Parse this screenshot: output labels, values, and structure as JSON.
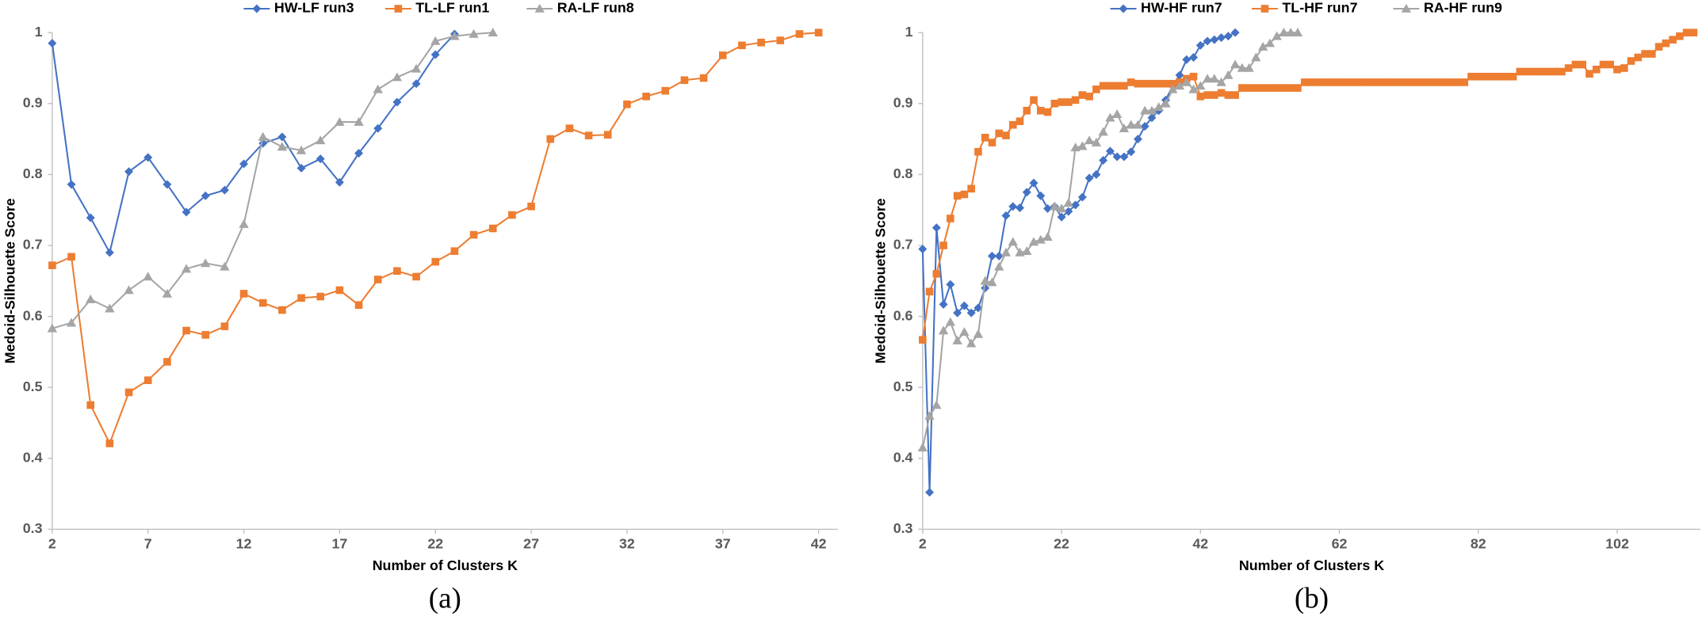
{
  "chart_data": [
    {
      "type": "line",
      "caption": "(a)",
      "xlabel": "Number of Clusters K",
      "ylabel": "Medoid-Silhouette Score",
      "xlim": [
        2,
        43
      ],
      "xticks": [
        2,
        7,
        12,
        17,
        22,
        27,
        32,
        37,
        42
      ],
      "ylim": [
        0.3,
        1
      ],
      "yticks": [
        0.3,
        0.4,
        0.5,
        0.6,
        0.7,
        0.8,
        0.9,
        1
      ],
      "series": [
        {
          "name": "HW-LF run3",
          "color": "#4472c4",
          "marker": "diamond",
          "x": [
            2,
            3,
            4,
            5,
            6,
            7,
            8,
            9,
            10,
            11,
            12,
            13,
            14,
            15,
            16,
            17,
            18,
            19,
            20,
            21,
            22,
            23
          ],
          "values": [
            0.985,
            0.786,
            0.739,
            0.69,
            0.804,
            0.824,
            0.786,
            0.747,
            0.77,
            0.778,
            0.815,
            0.844,
            0.853,
            0.809,
            0.822,
            0.789,
            0.83,
            0.865,
            0.902,
            0.928,
            0.969,
            0.998
          ]
        },
        {
          "name": "TL-LF run1",
          "color": "#ed7d31",
          "marker": "square",
          "x": [
            2,
            3,
            4,
            5,
            6,
            7,
            8,
            9,
            10,
            11,
            12,
            13,
            14,
            15,
            16,
            17,
            18,
            19,
            20,
            21,
            22,
            23,
            24,
            25,
            26,
            27,
            28,
            29,
            30,
            31,
            32,
            33,
            34,
            35,
            36,
            37,
            38,
            39,
            40,
            41,
            42
          ],
          "values": [
            0.672,
            0.684,
            0.475,
            0.421,
            0.493,
            0.51,
            0.536,
            0.58,
            0.574,
            0.586,
            0.632,
            0.619,
            0.609,
            0.626,
            0.628,
            0.637,
            0.616,
            0.652,
            0.664,
            0.656,
            0.677,
            0.692,
            0.715,
            0.724,
            0.743,
            0.755,
            0.85,
            0.865,
            0.855,
            0.856,
            0.899,
            0.91,
            0.918,
            0.933,
            0.936,
            0.968,
            0.982,
            0.986,
            0.989,
            0.998,
            1
          ]
        },
        {
          "name": "RA-LF run8",
          "color": "#a5a5a5",
          "marker": "triangle",
          "x": [
            2,
            3,
            4,
            5,
            6,
            7,
            8,
            9,
            10,
            11,
            12,
            13,
            14,
            15,
            16,
            17,
            18,
            19,
            20,
            21,
            22,
            23,
            24,
            25
          ],
          "values": [
            0.583,
            0.591,
            0.624,
            0.611,
            0.637,
            0.656,
            0.632,
            0.667,
            0.675,
            0.67,
            0.73,
            0.853,
            0.839,
            0.834,
            0.848,
            0.874,
            0.874,
            0.92,
            0.937,
            0.949,
            0.988,
            0.995,
            0.998,
            1
          ]
        }
      ]
    },
    {
      "type": "line",
      "caption": "(b)",
      "xlabel": "Number of Clusters K",
      "ylabel": "Medoid-Silhouette Score",
      "xlim": [
        2,
        114
      ],
      "xticks": [
        2,
        22,
        42,
        62,
        82,
        102
      ],
      "ylim": [
        0.3,
        1
      ],
      "yticks": [
        0.3,
        0.4,
        0.5,
        0.6,
        0.7,
        0.8,
        0.9,
        1
      ],
      "series": [
        {
          "name": "HW-HF run7",
          "color": "#4472c4",
          "marker": "diamond",
          "x": [
            2,
            3,
            4,
            5,
            6,
            7,
            8,
            9,
            10,
            11,
            12,
            13,
            14,
            15,
            16,
            17,
            18,
            19,
            20,
            21,
            22,
            23,
            24,
            25,
            26,
            27,
            28,
            29,
            30,
            31,
            32,
            33,
            34,
            35,
            36,
            37,
            38,
            39,
            40,
            41,
            42,
            43,
            44,
            45,
            46,
            47
          ],
          "values": [
            0.695,
            0.352,
            0.725,
            0.617,
            0.645,
            0.605,
            0.615,
            0.605,
            0.612,
            0.64,
            0.685,
            0.685,
            0.742,
            0.755,
            0.753,
            0.775,
            0.788,
            0.77,
            0.752,
            0.755,
            0.74,
            0.748,
            0.757,
            0.768,
            0.795,
            0.8,
            0.82,
            0.833,
            0.825,
            0.825,
            0.832,
            0.85,
            0.868,
            0.88,
            0.89,
            0.905,
            0.925,
            0.94,
            0.962,
            0.965,
            0.982,
            0.988,
            0.99,
            0.993,
            0.995,
            1
          ]
        },
        {
          "name": "TL-HF run7",
          "color": "#ed7d31",
          "marker": "square",
          "x": [
            2,
            3,
            4,
            5,
            6,
            7,
            8,
            9,
            10,
            11,
            12,
            13,
            14,
            15,
            16,
            17,
            18,
            19,
            20,
            21,
            22,
            23,
            24,
            25,
            26,
            27,
            28,
            29,
            30,
            31,
            32,
            33,
            34,
            35,
            36,
            37,
            38,
            39,
            40,
            41,
            42,
            43,
            44,
            45,
            46,
            47,
            48,
            49,
            50,
            51,
            52,
            53,
            54,
            55,
            56,
            57,
            58,
            59,
            60,
            61,
            62,
            63,
            64,
            65,
            66,
            67,
            68,
            69,
            70,
            71,
            72,
            73,
            74,
            75,
            76,
            77,
            78,
            79,
            80,
            81,
            82,
            83,
            84,
            85,
            86,
            87,
            88,
            89,
            90,
            91,
            92,
            93,
            94,
            95,
            96,
            97,
            98,
            99,
            100,
            101,
            102,
            103,
            104,
            105,
            106,
            107,
            108,
            109,
            110,
            111,
            112,
            113
          ],
          "values": [
            0.567,
            0.635,
            0.66,
            0.7,
            0.738,
            0.77,
            0.772,
            0.78,
            0.832,
            0.852,
            0.845,
            0.858,
            0.855,
            0.87,
            0.875,
            0.89,
            0.905,
            0.89,
            0.888,
            0.9,
            0.902,
            0.902,
            0.905,
            0.912,
            0.91,
            0.92,
            0.925,
            0.925,
            0.925,
            0.925,
            0.93,
            0.928,
            0.928,
            0.928,
            0.928,
            0.928,
            0.928,
            0.93,
            0.935,
            0.938,
            0.91,
            0.912,
            0.912,
            0.915,
            0.912,
            0.912,
            0.922,
            0.922,
            0.922,
            0.922,
            0.922,
            0.922,
            0.922,
            0.922,
            0.922,
            0.93,
            0.93,
            0.93,
            0.93,
            0.93,
            0.93,
            0.93,
            0.93,
            0.93,
            0.93,
            0.93,
            0.93,
            0.93,
            0.93,
            0.93,
            0.93,
            0.93,
            0.93,
            0.93,
            0.93,
            0.93,
            0.93,
            0.93,
            0.93,
            0.938,
            0.938,
            0.938,
            0.938,
            0.938,
            0.938,
            0.938,
            0.945,
            0.945,
            0.945,
            0.945,
            0.945,
            0.945,
            0.945,
            0.95,
            0.955,
            0.955,
            0.942,
            0.948,
            0.955,
            0.955,
            0.948,
            0.95,
            0.96,
            0.965,
            0.97,
            0.97,
            0.98,
            0.985,
            0.99,
            0.995,
            1,
            1
          ]
        },
        {
          "name": "RA-HF run9",
          "color": "#a5a5a5",
          "marker": "triangle",
          "x": [
            2,
            3,
            4,
            5,
            6,
            7,
            8,
            9,
            10,
            11,
            12,
            13,
            14,
            15,
            16,
            17,
            18,
            19,
            20,
            21,
            22,
            23,
            24,
            25,
            26,
            27,
            28,
            29,
            30,
            31,
            32,
            33,
            34,
            35,
            36,
            37,
            38,
            39,
            40,
            41,
            42,
            43,
            44,
            45,
            46,
            47,
            48,
            49,
            50,
            51,
            52,
            53,
            54,
            55,
            56
          ],
          "values": [
            0.415,
            0.46,
            0.475,
            0.58,
            0.592,
            0.566,
            0.578,
            0.562,
            0.575,
            0.65,
            0.648,
            0.67,
            0.69,
            0.705,
            0.69,
            0.692,
            0.705,
            0.708,
            0.712,
            0.755,
            0.752,
            0.76,
            0.838,
            0.84,
            0.848,
            0.845,
            0.86,
            0.88,
            0.885,
            0.865,
            0.87,
            0.87,
            0.89,
            0.89,
            0.895,
            0.9,
            0.92,
            0.925,
            0.93,
            0.92,
            0.925,
            0.935,
            0.935,
            0.93,
            0.94,
            0.955,
            0.95,
            0.95,
            0.965,
            0.98,
            0.985,
            0.995,
            1,
            1,
            1
          ]
        }
      ]
    }
  ]
}
